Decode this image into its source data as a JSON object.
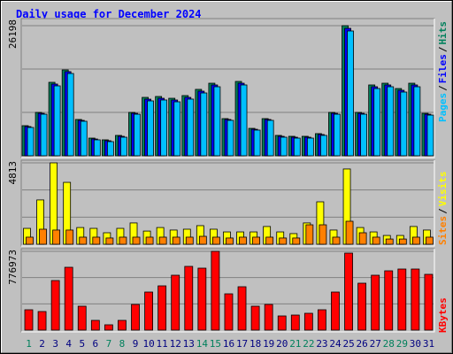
{
  "chart_data": [
    {
      "type": "bar",
      "title": "Daily usage for December 2024",
      "title_color": "#0000ff",
      "ylim": [
        0,
        26198
      ],
      "yticks": [
        26198
      ],
      "legend_separator": "/",
      "series": [
        {
          "name": "Hits",
          "color": "#00805c",
          "values": [
            6060,
            8730,
            14790,
            17290,
            7310,
            3560,
            3210,
            4100,
            8730,
            11760,
            11940,
            11580,
            12120,
            13370,
            14610,
            7480,
            14970,
            5520,
            7480,
            4100,
            3920,
            3920,
            4460,
            8730,
            26198,
            8730,
            14260,
            14610,
            13540,
            14610,
            8550
          ]
        },
        {
          "name": "Files",
          "color": "#0000ff",
          "values": [
            5880,
            8550,
            14440,
            16940,
            7130,
            3380,
            3030,
            3920,
            8550,
            11400,
            11580,
            11230,
            11760,
            13010,
            14260,
            7310,
            14610,
            5340,
            7310,
            3920,
            3740,
            3740,
            4280,
            8550,
            25660,
            8550,
            13900,
            14260,
            13190,
            14260,
            8370
          ]
        },
        {
          "name": "Pages",
          "color": "#00c0ff",
          "values": [
            5700,
            8370,
            14080,
            16570,
            6950,
            3210,
            2850,
            3740,
            8370,
            11050,
            11230,
            10870,
            11410,
            12650,
            13900,
            7130,
            14260,
            5170,
            7130,
            3740,
            3560,
            3560,
            4100,
            8370,
            25130,
            8370,
            13540,
            13900,
            12830,
            13900,
            8190
          ]
        }
      ]
    },
    {
      "type": "bar",
      "ylim": [
        0,
        4813
      ],
      "yticks": [
        4813
      ],
      "legend_separator": "/",
      "series": [
        {
          "name": "Visits",
          "color": "#ffff00",
          "values": [
            940,
            2620,
            4813,
            3660,
            990,
            940,
            680,
            940,
            1260,
            780,
            990,
            840,
            890,
            1100,
            890,
            730,
            730,
            730,
            1050,
            730,
            630,
            1260,
            2510,
            840,
            4450,
            990,
            730,
            520,
            520,
            1050,
            840
          ]
        },
        {
          "name": "Sites",
          "color": "#ff8000",
          "values": [
            420,
            890,
            840,
            840,
            420,
            420,
            370,
            420,
            420,
            420,
            420,
            420,
            420,
            470,
            420,
            370,
            420,
            420,
            420,
            370,
            370,
            1150,
            1150,
            420,
            1360,
            680,
            420,
            310,
            310,
            420,
            420
          ]
        }
      ]
    },
    {
      "type": "bar",
      "ylim": [
        0,
        776973
      ],
      "yticks": [
        776973
      ],
      "categories": [
        "1",
        "2",
        "3",
        "4",
        "5",
        "6",
        "7",
        "8",
        "9",
        "10",
        "11",
        "12",
        "13",
        "14",
        "15",
        "16",
        "17",
        "18",
        "19",
        "20",
        "21",
        "22",
        "23",
        "24",
        "25",
        "26",
        "27",
        "28",
        "29",
        "30",
        "31"
      ],
      "category_colors": [
        "#00805c",
        "#000080",
        "#000080",
        "#000080",
        "#000080",
        "#000080",
        "#00805c",
        "#00805c",
        "#000080",
        "#000080",
        "#000080",
        "#000080",
        "#000080",
        "#00805c",
        "#00805c",
        "#000080",
        "#000080",
        "#000080",
        "#000080",
        "#000080",
        "#00805c",
        "#00805c",
        "#000080",
        "#000080",
        "#000080",
        "#000080",
        "#000080",
        "#00805c",
        "#00805c",
        "#000080",
        "#000080"
      ],
      "series": [
        {
          "name": "KBytes",
          "color": "#ff0000",
          "values": [
            200800,
            183300,
            488900,
            619800,
            235700,
            96000,
            52400,
            96000,
            253200,
            375400,
            436500,
            541300,
            628600,
            611100,
            776973,
            357900,
            427800,
            235700,
            253200,
            139700,
            148400,
            165900,
            200800,
            375400,
            759500,
            462700,
            541300,
            584900,
            602400,
            602400,
            550000
          ]
        }
      ]
    }
  ]
}
